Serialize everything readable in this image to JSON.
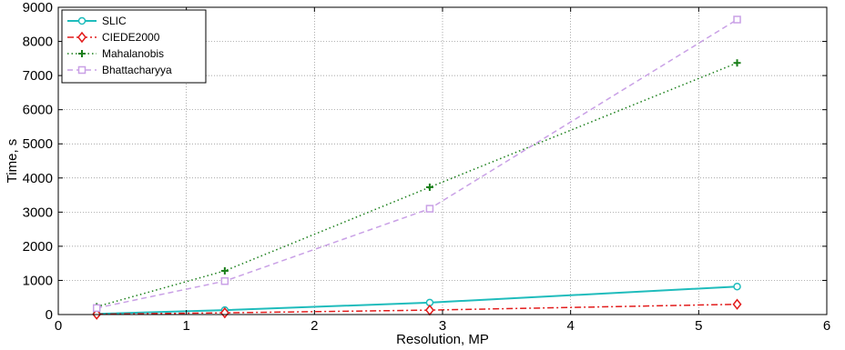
{
  "chart_data": {
    "type": "line",
    "title": "",
    "xlabel": "Resolution, MP",
    "ylabel": "Time, s",
    "xlim": [
      0,
      6
    ],
    "ylim": [
      0,
      9000
    ],
    "xticks": [
      0,
      1,
      2,
      3,
      4,
      5,
      6
    ],
    "yticks": [
      0,
      1000,
      2000,
      3000,
      4000,
      5000,
      6000,
      7000,
      8000,
      9000
    ],
    "x": [
      0.3,
      1.3,
      2.9,
      5.3
    ],
    "grid": true,
    "legend_position": "top-left",
    "series": [
      {
        "name": "SLIC",
        "values": [
          20,
          130,
          350,
          820
        ],
        "color": "#1fbcbc",
        "dash": "",
        "marker": "circle"
      },
      {
        "name": "CIEDE2000",
        "values": [
          10,
          50,
          130,
          300
        ],
        "color": "#e21b1b",
        "dash": "7,3,2,3",
        "marker": "diamond"
      },
      {
        "name": "Mahalanobis",
        "values": [
          230,
          1280,
          3730,
          7370
        ],
        "color": "#1a7f1a",
        "dash": "1.5,3",
        "marker": "plus"
      },
      {
        "name": "Bhattacharyya",
        "values": [
          190,
          980,
          3100,
          8640
        ],
        "color": "#c9a0e6",
        "dash": "6,4",
        "marker": "square"
      }
    ]
  }
}
